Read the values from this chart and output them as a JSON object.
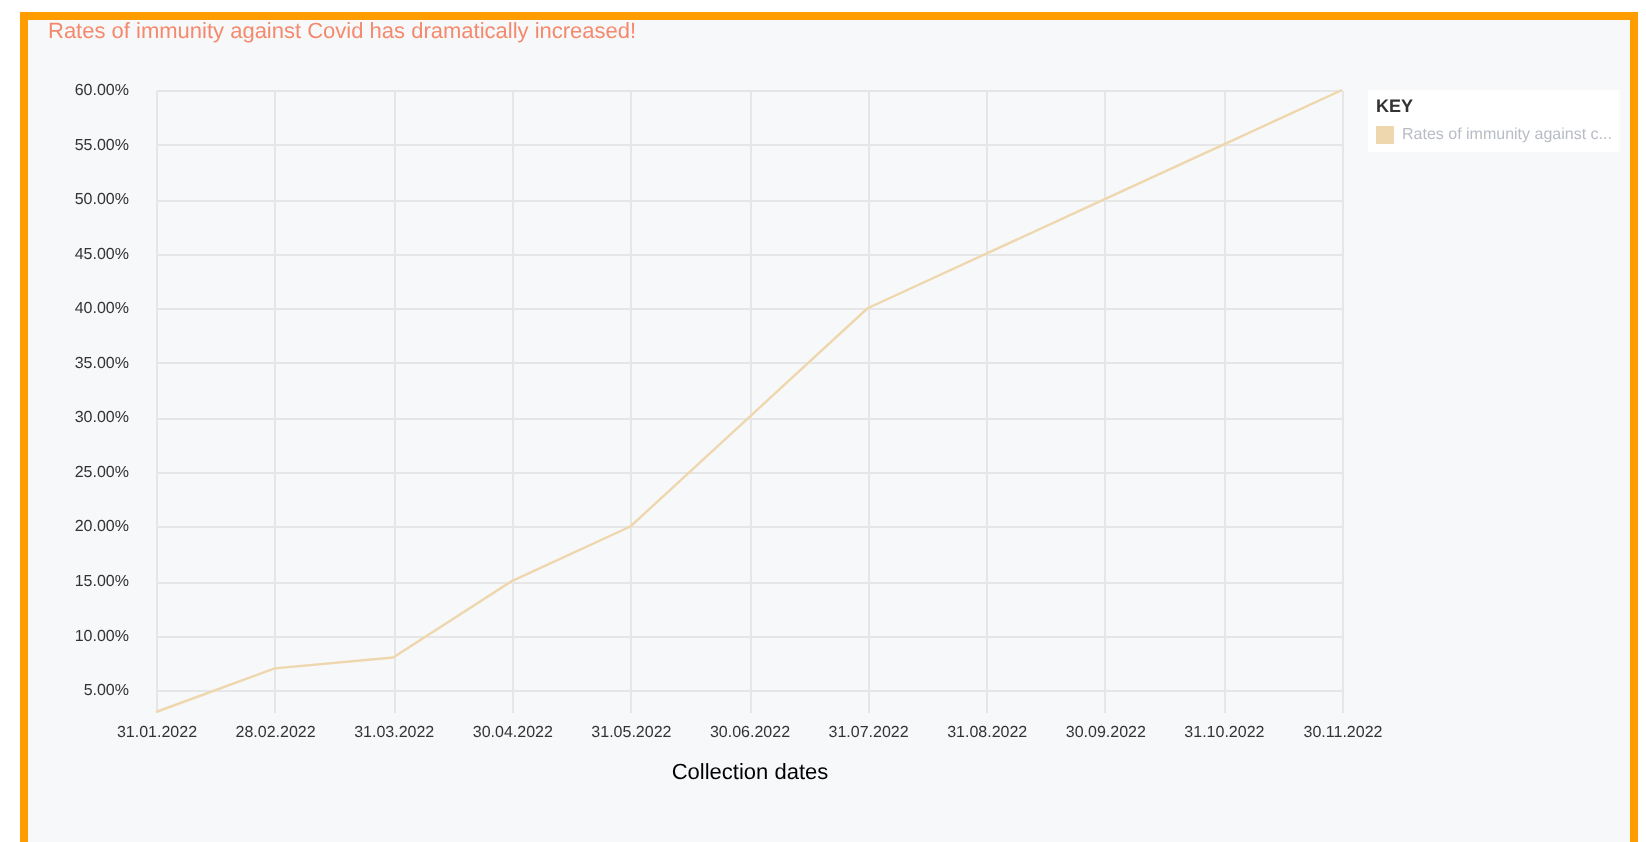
{
  "chart_data": {
    "type": "line",
    "title": "Rates of immunity against Covid has dramatically increased!",
    "xlabel": "Collection dates",
    "legend_title": "KEY",
    "categories": [
      "31.01.2022",
      "28.02.2022",
      "31.03.2022",
      "30.04.2022",
      "31.05.2022",
      "30.06.2022",
      "31.07.2022",
      "31.08.2022",
      "30.09.2022",
      "31.10.2022",
      "30.11.2022"
    ],
    "series": [
      {
        "name": "Rates of immunity against c...",
        "color": "#eed6ad",
        "values": [
          3,
          7,
          8,
          15,
          20,
          30,
          40,
          45,
          50,
          55,
          60
        ]
      }
    ],
    "ylim": [
      3,
      60
    ],
    "yticks": [
      {
        "value": 5,
        "label": "5.00%"
      },
      {
        "value": 10,
        "label": "10.00%"
      },
      {
        "value": 15,
        "label": "15.00%"
      },
      {
        "value": 20,
        "label": "20.00%"
      },
      {
        "value": 25,
        "label": "25.00%"
      },
      {
        "value": 30,
        "label": "30.00%"
      },
      {
        "value": 35,
        "label": "35.00%"
      },
      {
        "value": 40,
        "label": "40.00%"
      },
      {
        "value": 45,
        "label": "45.00%"
      },
      {
        "value": 50,
        "label": "50.00%"
      },
      {
        "value": 55,
        "label": "55.00%"
      },
      {
        "value": 60,
        "label": "60.00%"
      }
    ],
    "grid": true,
    "legend": "top right",
    "marker": "none"
  }
}
